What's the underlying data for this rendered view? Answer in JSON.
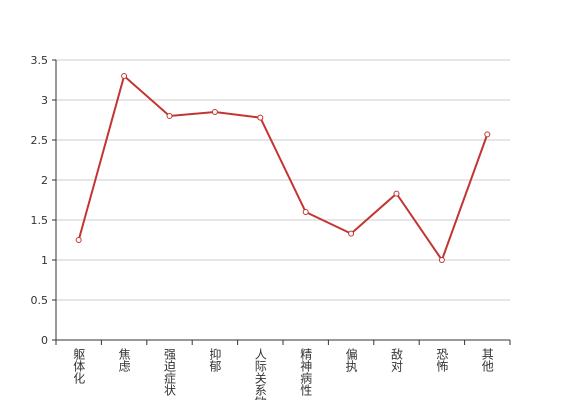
{
  "chart_data": {
    "type": "line",
    "categories": [
      "躯体化",
      "焦虑",
      "强迫症状",
      "抑郁",
      "人际关系敏感",
      "精神病性",
      "偏执",
      "敌对",
      "恐怖",
      "其他"
    ],
    "values": [
      1.25,
      3.3,
      2.8,
      2.85,
      2.78,
      1.6,
      1.33,
      1.83,
      1.0,
      2.57
    ],
    "color": "#c23531",
    "ylim": [
      0,
      3.5
    ],
    "yticks": [
      0,
      0.5,
      1,
      1.5,
      2,
      2.5,
      3,
      3.5
    ],
    "grid": true
  }
}
